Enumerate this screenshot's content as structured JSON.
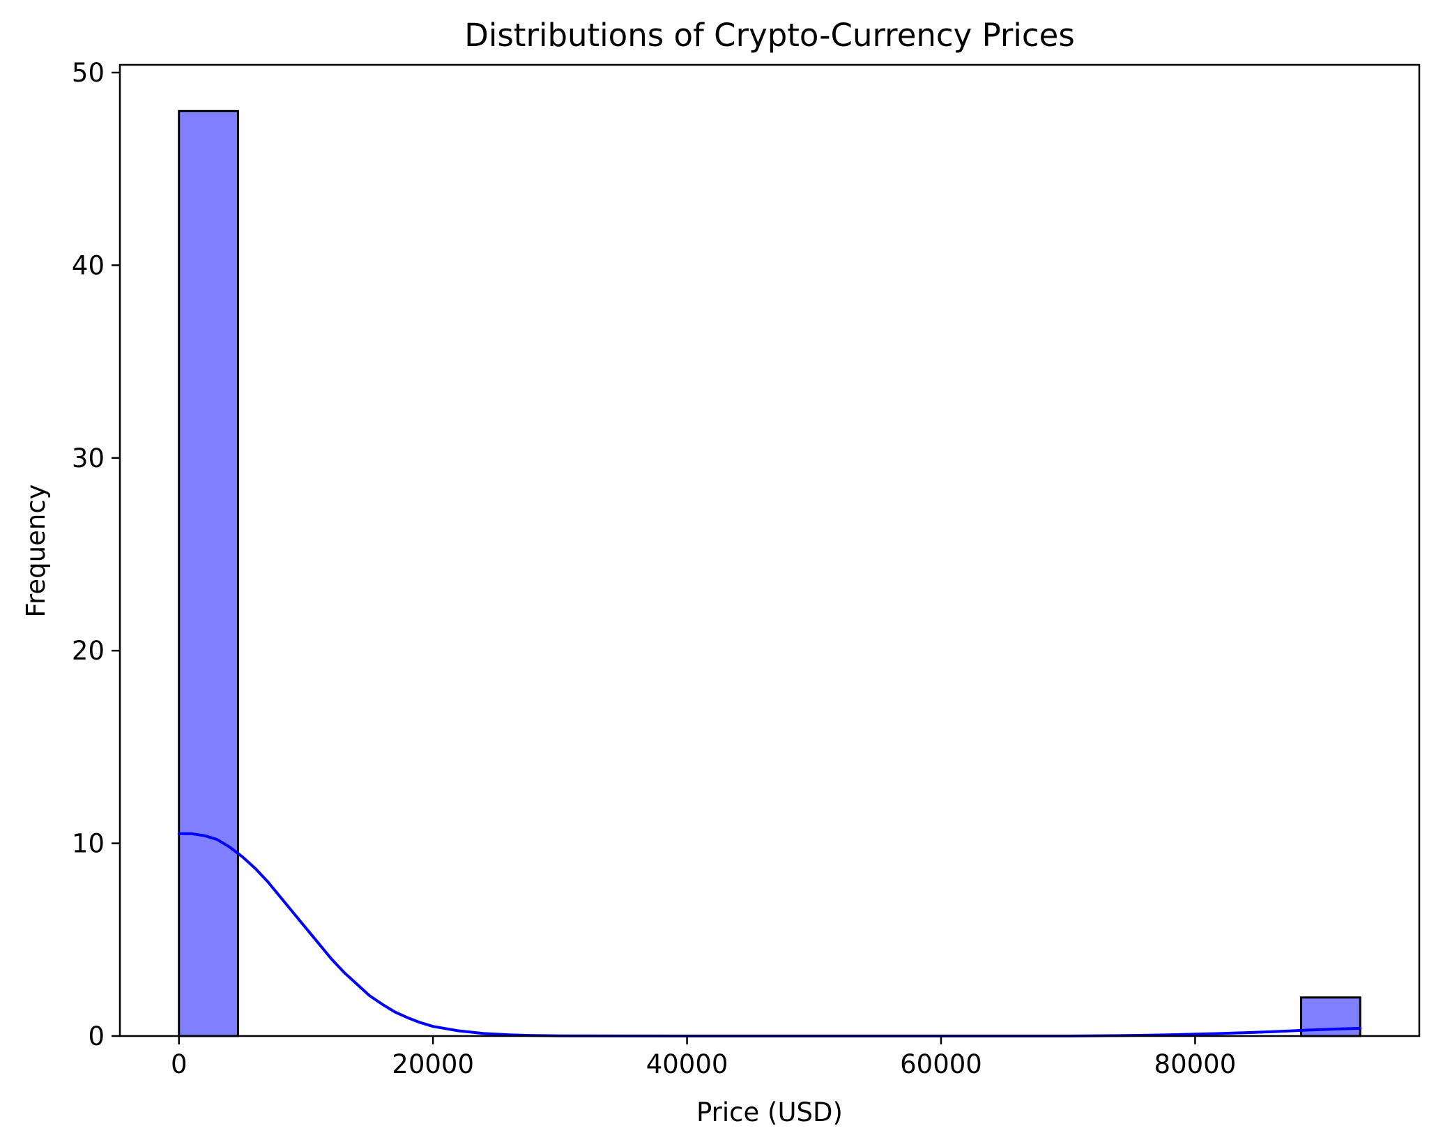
{
  "chart_data": {
    "type": "bar",
    "title": "Distributions of Crypto-Currency Prices",
    "xlabel": "Price (USD)",
    "ylabel": "Frequency",
    "xlim": [
      -4650,
      97650
    ],
    "ylim": [
      0,
      50.4
    ],
    "xticks": [
      0,
      20000,
      40000,
      60000,
      80000
    ],
    "yticks": [
      0,
      10,
      20,
      30,
      40,
      50
    ],
    "grid": false,
    "bar_color": "#8080ff",
    "bar_edge_color": "#000000",
    "kde_color": "#0000ff",
    "bins": [
      {
        "x0": 0,
        "x1": 4650,
        "count": 48
      },
      {
        "x0": 88350,
        "x1": 93000,
        "count": 2
      }
    ],
    "kde": {
      "x": [
        0,
        1000,
        2000,
        3000,
        4000,
        5000,
        6000,
        7000,
        8000,
        9000,
        10000,
        11000,
        12000,
        13000,
        14000,
        15000,
        16000,
        17000,
        18000,
        19000,
        20000,
        22000,
        24000,
        26000,
        28000,
        30000,
        35000,
        40000,
        50000,
        60000,
        70000,
        74000,
        78000,
        82000,
        86000,
        89000,
        91000,
        93000
      ],
      "y": [
        10.5,
        10.5,
        10.4,
        10.2,
        9.8,
        9.3,
        8.7,
        8.0,
        7.2,
        6.4,
        5.6,
        4.8,
        4.0,
        3.3,
        2.7,
        2.1,
        1.65,
        1.25,
        0.95,
        0.7,
        0.5,
        0.27,
        0.13,
        0.06,
        0.025,
        0.01,
        0.002,
        0.0,
        0.0,
        0.0,
        0.0,
        0.02,
        0.06,
        0.13,
        0.22,
        0.31,
        0.36,
        0.4
      ]
    }
  }
}
